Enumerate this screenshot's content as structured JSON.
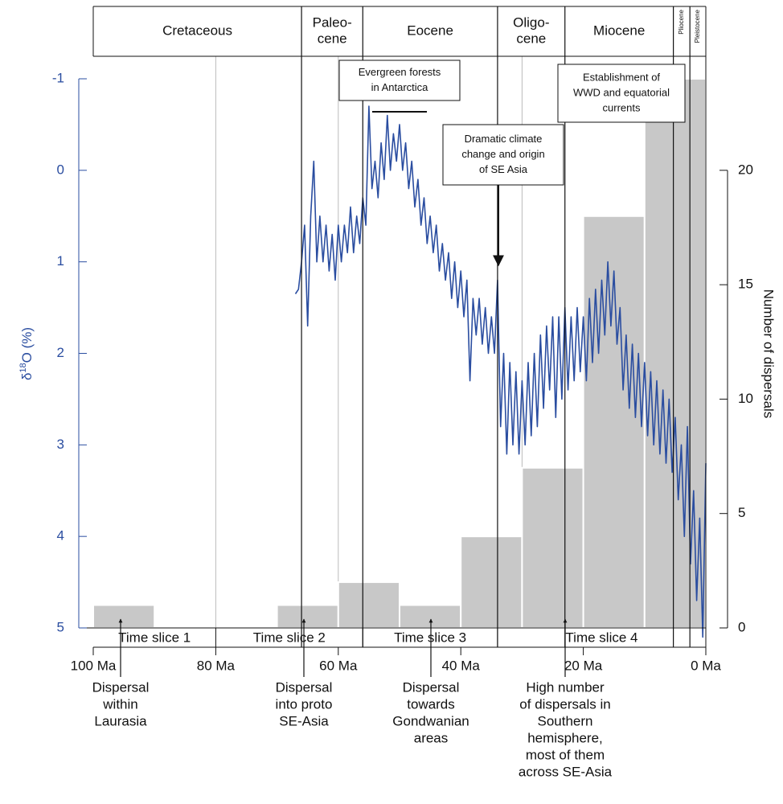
{
  "chart_data": {
    "type": "combo",
    "xlim": [
      100,
      0
    ],
    "xticks": [
      {
        "value": 100,
        "label": "100 Ma"
      },
      {
        "value": 80,
        "label": "80 Ma"
      },
      {
        "value": 60,
        "label": "60 Ma"
      },
      {
        "value": 40,
        "label": "40 Ma"
      },
      {
        "value": 20,
        "label": "20 Ma"
      },
      {
        "value": 0,
        "label": "0 Ma"
      }
    ],
    "ylabel": [
      "δ",
      "18",
      "O (%)"
    ],
    "ylim": [
      5,
      -1
    ],
    "yticks": [
      -1,
      0,
      1,
      2,
      3,
      4,
      5
    ],
    "y2label": "Number of dispersals",
    "y2lim": [
      0,
      24
    ],
    "y2ticks": [
      0,
      5,
      10,
      15,
      20
    ],
    "vlines": [
      80,
      60,
      30
    ],
    "series": [
      {
        "type": "histogram",
        "axis": "y2",
        "color": "#c8c8c8",
        "bins": [
          100,
          90,
          80,
          70,
          60,
          50,
          40,
          30,
          20,
          10,
          0
        ],
        "values": [
          1,
          0,
          0,
          1,
          2,
          1,
          4,
          7,
          18,
          24
        ]
      },
      {
        "type": "line",
        "axis": "y",
        "color": "#2a4da0",
        "x": [
          67,
          66.5,
          66,
          65.5,
          65,
          64.5,
          64,
          63.5,
          63,
          62.5,
          62,
          61.5,
          61,
          60.5,
          60,
          59.5,
          59,
          58.5,
          58,
          57.5,
          57,
          56.5,
          56,
          55.5,
          55,
          54.5,
          54,
          53.5,
          53,
          52.5,
          52,
          51.5,
          51,
          50.5,
          50,
          49.5,
          49,
          48.5,
          48,
          47.5,
          47,
          46.5,
          46,
          45.5,
          45,
          44.5,
          44,
          43.5,
          43,
          42.5,
          42,
          41.5,
          41,
          40.5,
          40,
          39.5,
          39,
          38.5,
          38,
          37.5,
          37,
          36.5,
          36,
          35.5,
          35,
          34.5,
          34,
          33.5,
          33,
          32.5,
          32,
          31.5,
          31,
          30.5,
          30,
          29.5,
          29,
          28.5,
          28,
          27.5,
          27,
          26.5,
          26,
          25.5,
          25,
          24.5,
          24,
          23.5,
          23,
          22.5,
          22,
          21.5,
          21,
          20.5,
          20,
          19.5,
          19,
          18.5,
          18,
          17.5,
          17,
          16.5,
          16,
          15.5,
          15,
          14.5,
          14,
          13.5,
          13,
          12.5,
          12,
          11.5,
          11,
          10.5,
          10,
          9.5,
          9,
          8.5,
          8,
          7.5,
          7,
          6.5,
          6,
          5.5,
          5,
          4.5,
          4,
          3.5,
          3,
          2.5,
          2,
          1.5,
          1,
          0.5,
          0
        ],
        "values": [
          1.35,
          1.3,
          1.0,
          0.6,
          1.7,
          0.5,
          -0.1,
          1.0,
          0.5,
          1.0,
          0.6,
          1.1,
          0.7,
          1.2,
          0.6,
          1.0,
          0.6,
          0.9,
          0.4,
          0.9,
          0.5,
          0.8,
          0.3,
          0.6,
          -0.7,
          0.2,
          -0.1,
          0.3,
          -0.3,
          0.1,
          -0.6,
          0.0,
          -0.4,
          -0.1,
          -0.5,
          0.0,
          -0.3,
          0.2,
          -0.1,
          0.4,
          0.1,
          0.6,
          0.3,
          0.8,
          0.5,
          0.9,
          0.6,
          1.1,
          0.8,
          1.2,
          0.9,
          1.4,
          1.0,
          1.5,
          1.1,
          1.6,
          1.2,
          2.3,
          1.4,
          1.8,
          1.4,
          1.9,
          1.5,
          2.0,
          1.6,
          2.0,
          1.2,
          2.8,
          2.0,
          3.1,
          2.1,
          3.0,
          2.2,
          3.1,
          2.3,
          3.0,
          2.1,
          2.9,
          2.0,
          2.8,
          1.8,
          2.6,
          1.7,
          2.4,
          1.6,
          2.7,
          1.6,
          2.5,
          1.5,
          2.4,
          1.6,
          2.3,
          1.5,
          2.2,
          1.6,
          2.3,
          1.4,
          2.1,
          1.3,
          2.0,
          1.2,
          1.8,
          1.0,
          1.7,
          1.1,
          1.9,
          1.5,
          2.4,
          1.8,
          2.6,
          1.9,
          2.7,
          2.0,
          2.8,
          2.1,
          2.9,
          2.2,
          3.0,
          2.3,
          3.1,
          2.4,
          3.2,
          2.5,
          3.3,
          2.7,
          3.6,
          3.0,
          4.0,
          2.8,
          4.3,
          3.5,
          4.7,
          3.8,
          5.1,
          3.2
        ]
      }
    ],
    "periods": [
      {
        "label": [
          "Cretaceous"
        ],
        "start": 100,
        "end": 66
      },
      {
        "label": [
          "Paleo-",
          "cene"
        ],
        "start": 66,
        "end": 56
      },
      {
        "label": [
          "Eocene"
        ],
        "start": 56,
        "end": 34
      },
      {
        "label": [
          "Oligo-",
          "cene"
        ],
        "start": 34,
        "end": 23
      },
      {
        "label": [
          "Miocene"
        ],
        "start": 23,
        "end": 5.3
      },
      {
        "label": [
          "Pliocene"
        ],
        "start": 5.3,
        "end": 2.6
      },
      {
        "label": [
          "Pleistocene"
        ],
        "start": 2.6,
        "end": 0
      }
    ],
    "time_slices": [
      {
        "label": "Time slice 1",
        "start": 100,
        "end": 80
      },
      {
        "label": "Time slice 2",
        "start": 80,
        "end": 56
      },
      {
        "label": "Time slice 3",
        "start": 56,
        "end": 34
      },
      {
        "label": "Time slice 4",
        "start": 34,
        "end": 0
      }
    ],
    "annotations_top": [
      [
        "Evergreen forests",
        "in Antarctica"
      ],
      [
        "Establishment of",
        "WWD and equatorial",
        "currents"
      ],
      [
        "Dramatic climate",
        "change and origin",
        "of SE Asia"
      ]
    ],
    "annotations_bottom": [
      [
        "Dispersal",
        "within",
        "Laurasia"
      ],
      [
        "Dispersal",
        "into proto",
        "SE-Asia"
      ],
      [
        "Dispersal",
        "towards",
        "Gondwanian",
        "areas"
      ],
      [
        "High number",
        "of dispersals in",
        "Southern",
        "hemisphere,",
        "most of them",
        "across SE-Asia"
      ]
    ]
  }
}
